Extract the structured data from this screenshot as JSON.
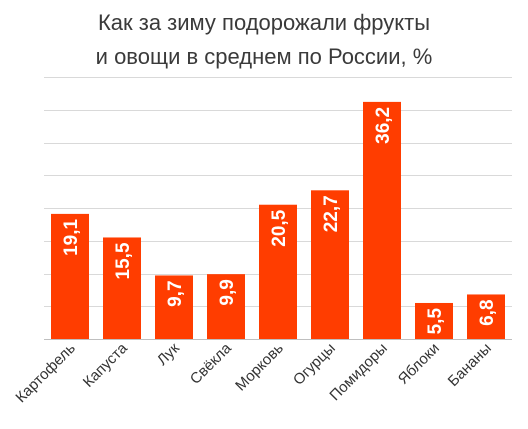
{
  "chart_data": {
    "type": "bar",
    "title": [
      "Как за зиму подорожали фрукты",
      "и овощи в среднем по России, %"
    ],
    "categories": [
      "Картофель",
      "Капуста",
      "Лук",
      "Свёкла",
      "Морковь",
      "Огурцы",
      "Помидоры",
      "Яблоки",
      "Бананы"
    ],
    "values": [
      19.1,
      15.5,
      9.7,
      9.9,
      20.5,
      22.7,
      36.2,
      5.5,
      6.8
    ],
    "value_labels": [
      "19,1",
      "15,5",
      "9,7",
      "9,9",
      "20,5",
      "22,7",
      "36,2",
      "5,5",
      "6,8"
    ],
    "xlabel": "",
    "ylabel": "",
    "ylim": [
      0,
      40
    ],
    "grid": true,
    "bar_color": "#ff3d00"
  }
}
